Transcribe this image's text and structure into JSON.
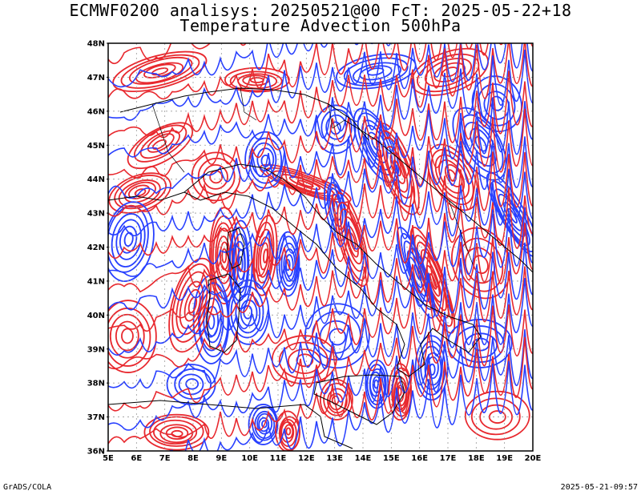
{
  "header": {
    "line1": "ECMWF0200 analisys: 20250521@00 FcT: 2025-05-22+18",
    "line2": "Temperature Advection 500hPa"
  },
  "footer": {
    "left": "GrADS/COLA",
    "right": "2025-05-21-09:57"
  },
  "map": {
    "lat_labels": [
      "48N",
      "47N",
      "46N",
      "45N",
      "44N",
      "43N",
      "42N",
      "41N",
      "40N",
      "39N",
      "38N",
      "37N",
      "36N"
    ],
    "lon_labels": [
      "5E",
      "6E",
      "7E",
      "8E",
      "9E",
      "10E",
      "11E",
      "12E",
      "13E",
      "14E",
      "15E",
      "16E",
      "17E",
      "18E",
      "19E",
      "20E"
    ],
    "colors": {
      "warm": "#e8282e",
      "cold": "#2840ff",
      "border": "#000000",
      "grid": "#9a9a9a"
    }
  }
}
